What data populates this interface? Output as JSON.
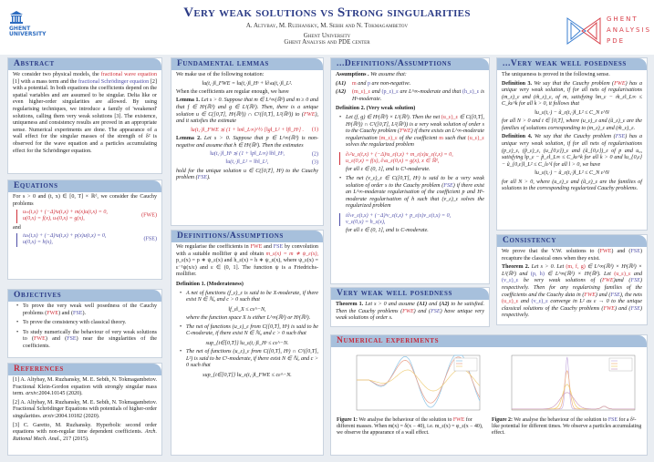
{
  "header": {
    "title": "Very weak solutions vs Strong singularities",
    "authors": "A. Altybay, M. Ruzhansky, M. Sebih and N. Tokmagambetov",
    "affiliation1": "Ghent University",
    "affiliation2": "Ghent Analysis and PDE center",
    "left_logo": "GHENT UNIVERSITY",
    "right_logo": "GHENT ANALYSIS PDE"
  },
  "colors": {
    "header_bar": "#a7c0dc",
    "title_navy": "#2b3b86",
    "fwe_red": "#d0303a",
    "fse_blue": "#4f4fa8"
  },
  "sections": [
    {
      "id": "s-abstract",
      "title": "Abstract",
      "blocks": [
        {
          "t": "p",
          "s": [
            [
              "We consider two physical models, the "
            ],
            [
              "fractional wave equation",
              "r"
            ],
            [
              " [1] with a mass term and the "
            ],
            [
              "fractional Schrödinger equation",
              "b"
            ],
            [
              " [2] with a potential. In both equations the coefficients depend on the spatial variables and are assumed to be singular. Delta like or even higher-order singularities are allowed. By using regularising techniques, we introduce a family of 'weakened' solutions, calling them very weak solutions [3]. The existence, uniqueness and consistency results are proved in an appropriate sense. Numerical experiments are done. The appearance of a wall effect for the singular masses of the strength of δ² is observed for the wave equation and a particles accumulating effect for the Schrödinger equation."
            ]
          ]
        }
      ]
    },
    {
      "id": "s-equations",
      "title": "Equations",
      "blocks": [
        {
          "t": "p",
          "s": [
            [
              "For s > 0 and (t, x) ∈ [0, T] × ℝᵈ, we consider the Cauchy problems"
            ]
          ]
        },
        {
          "t": "eq",
          "left": true,
          "c": "r",
          "lines": [
            "uₜₜ(t,x) + (−Δ)ˢu(t,x) + m(x)u(t,x) = 0,",
            "u(0,x) = f(x),  uₜ(0,x) = g(x),"
          ],
          "tag": "(FWE)"
        },
        {
          "t": "p",
          "s": [
            [
              "and"
            ]
          ]
        },
        {
          "t": "eq",
          "left": true,
          "c": "b",
          "lines": [
            "iuₜ(t,x) + (−Δ)ˢu(t,x) + p(x)u(t,x) = 0,",
            "u(0,x) = h(x),"
          ],
          "tag": "(FSE)"
        }
      ]
    },
    {
      "id": "s-objectives",
      "title": "Objectives",
      "blocks": [
        {
          "t": "li",
          "s": [
            [
              "To prove the very weak well posedness of the Cauchy problems ("
            ],
            [
              "FWE",
              "r"
            ],
            [
              ") and ("
            ],
            [
              "FSE",
              "b"
            ],
            [
              ")."
            ]
          ]
        },
        {
          "t": "li",
          "s": [
            [
              "To prove the consistency with classical theory."
            ]
          ]
        },
        {
          "t": "li",
          "s": [
            [
              "To study numerically the behaviour of very weak solutions to ("
            ],
            [
              "FWE",
              "r"
            ],
            [
              ") and ("
            ],
            [
              "FSE",
              "b"
            ],
            [
              ") near the singularities of the coefficients."
            ]
          ]
        }
      ]
    },
    {
      "id": "s-references",
      "title": "References",
      "red": true,
      "blocks": [
        {
          "t": "p",
          "s": [
            [
              "[1] A. Altybay, M. Ruzhansky, M. E. Sebih, N. Tokmagambetov. Fractional Klein-Gordon equation with strongly singular mass term. "
            ],
            [
              "arxiv",
              "i"
            ],
            [
              ":2004.10145 (2020)."
            ]
          ]
        },
        {
          "t": "p",
          "s": [
            [
              "[2] A. Altybay, M. Ruzhansky, M. E. Sebih, N. Tokmagambetov. Fractional Schrödinger Equations with potentials of higher-order singularities. "
            ],
            [
              "arxiv",
              "i"
            ],
            [
              ":2004.10182 (2020)."
            ]
          ]
        },
        {
          "t": "p",
          "s": [
            [
              "[3] C. Garetto, M. Ruzhansky. Hyperbolic second order equations with non-regular time dependent coefficients. "
            ],
            [
              "Arch. Rational Mech. Anal.",
              "i"
            ],
            [
              ", 217 (2015)."
            ]
          ]
        }
      ]
    },
    {
      "id": "s-lemmas",
      "title": "Fundamental lemmas",
      "blocks": [
        {
          "t": "p",
          "s": [
            [
              "We make use of the following notation:"
            ]
          ]
        },
        {
          "t": "eq",
          "lines": [
            "‖u(t,·)‖_FWE = ‖u(t,·)‖_Hˢ + ‖∂ₜu(t,·)‖_L²."
          ]
        },
        {
          "t": "p",
          "s": [
            [
              "When the coefficients are regular enough, we have"
            ]
          ]
        },
        {
          "t": "p",
          "s": [
            [
              "Lemma 1.",
              "B"
            ],
            [
              " Let s > 0. Suppose that m ∈ L^∞(ℝᵈ) and m ≥ 0 and that f ∈ Hˢ(ℝᵈ) and g ∈ L²(ℝᵈ). Then, there is a unique solution u ∈ C([0,T], Hˢ(ℝᵈ)) ∩ C¹([0,T], L²(ℝᵈ)) to (",
              "i"
            ],
            [
              "FWE",
              "ri"
            ],
            [
              "), and it satisfies the estimate",
              "i"
            ]
          ]
        },
        {
          "t": "eq",
          "c": "r",
          "lines": [
            "‖u(t,·)‖_FWE ≲ (1 + ‖m‖_L∞)^½ [‖g‖_L² + ‖f‖_Hˢ] ."
          ],
          "tag": "(1)"
        },
        {
          "t": "p",
          "s": [
            [
              "Lemma 2.",
              "B"
            ],
            [
              " Let s > 0. Suppose that p ∈ L^∞(ℝᵈ) is non-negative and assume that h ∈ Hˢ(ℝᵈ). Then the estimates",
              "i"
            ]
          ]
        },
        {
          "t": "eq",
          "c": "b",
          "lines": [
            "‖u(t,·)‖_Hˢ ≲ (1 + ‖p‖_L∞) ‖h‖_Hˢ,"
          ],
          "tag": "(2)"
        },
        {
          "t": "eq",
          "c": "b",
          "lines": [
            "‖u(t,·)‖_L² = ‖h‖_L²,"
          ],
          "tag": "(3)"
        },
        {
          "t": "p",
          "s": [
            [
              "hold for the unique solution u ∈ C([0,T], Hˢ) to the Cauchy problem (",
              "i"
            ],
            [
              "FSE",
              "bi"
            ],
            [
              ").",
              "i"
            ]
          ]
        }
      ]
    },
    {
      "id": "s-defs",
      "title": "Definitions/Assumptions",
      "blocks": [
        {
          "t": "p",
          "s": [
            [
              "We regularise the coefficients in "
            ],
            [
              "FWE",
              "r"
            ],
            [
              " and "
            ],
            [
              "FSE",
              "b"
            ],
            [
              " by convolution with a suitable mollifier ψ and obtain "
            ],
            [
              "m_ε(x) = m ∗ ψ_ε(x),",
              "ri"
            ],
            [
              "  p_ε(x) = p ∗ ψ_ε(x) and h_ε(x) = h ∗ ψ_ε(x), where ψ_ε(x) = ε⁻¹ψ(x/ε) and ε ∈ (0, 1]. The function ψ is a Friedrichs-mollifier."
            ]
          ]
        },
        {
          "t": "hd",
          "s": [
            [
              "Definition 1. (Moderateness)"
            ]
          ]
        },
        {
          "t": "li",
          "s": [
            [
              "A net of functions (f_ε)_ε is said to be X-moderate, if there exist N ∈ ℕ₀ and c > 0 such that",
              "i"
            ]
          ]
        },
        {
          "t": "eq",
          "lines": [
            "‖f_ε‖_X ≤ cε^−N,"
          ]
        },
        {
          "t": "ind",
          "s": [
            [
              "where the function space X is either L^∞(ℝᵈ) or Hˢ(ℝᵈ).",
              "i"
            ]
          ]
        },
        {
          "t": "li",
          "s": [
            [
              "The net of functions (u_ε)_ε from C([0,T], Hˢ) is said to be C-moderate, if there exist N ∈ ℕ₀ and c > 0 such that",
              "i"
            ]
          ]
        },
        {
          "t": "eq",
          "lines": [
            "sup_{t∈[0,T]} ‖u_ε(t,·)‖_Hˢ ≤ cε^−N."
          ]
        },
        {
          "t": "li",
          "s": [
            [
              "The net of functions (u_ε)_ε from C([0,T], Hˢ) ∩ C¹([0,T], L²) is said to be C¹-moderate, if there exist N ∈ ℕ₀ and c > 0 such that",
              "i"
            ]
          ]
        },
        {
          "t": "eq",
          "lines": [
            "sup_{t∈[0,T]} ‖u_ε(t,·)‖_FWE ≤ cε^−N."
          ]
        }
      ]
    },
    {
      "id": "s-defs2",
      "title": "...Definitions/Assumptions",
      "blocks": [
        {
          "t": "p",
          "s": [
            [
              "Assumptions .",
              "B"
            ],
            [
              " We assume that:",
              "i"
            ]
          ]
        },
        {
          "t": "ai",
          "k": "(A1)",
          "s": [
            [
              "m",
              "r"
            ],
            [
              " and ",
              "i"
            ],
            [
              "p",
              "b"
            ],
            [
              " are non-negative.",
              "i"
            ]
          ]
        },
        {
          "t": "ai",
          "k": "(A2)",
          "s": [
            [
              "(m_ε)_ε",
              "r"
            ],
            [
              " and ",
              "i"
            ],
            [
              "(p_ε)_ε",
              "b"
            ],
            [
              " are L^∞-moderate and that ",
              "i"
            ],
            [
              "(h_ε)_ε",
              "b"
            ],
            [
              " is Hˢ-moderate.",
              "i"
            ]
          ]
        },
        {
          "t": "hd",
          "s": [
            [
              "Definition 2. (Very weak solution)"
            ]
          ]
        },
        {
          "t": "li",
          "s": [
            [
              "Let (f, g) ∈ Hˢ(ℝᵈ) × L²(ℝᵈ). Then the net ",
              "i"
            ],
            [
              "(u_ε)_ε",
              "r"
            ],
            [
              " ∈ C([0,T], Hˢ(ℝᵈ)) ∩ C¹([0,T], L²(ℝᵈ)) is a very weak solution of order s to the Cauchy problem (",
              "i"
            ],
            [
              "FWE",
              "ri"
            ],
            [
              ") if there exists an L^∞-moderate regularisation ",
              "i"
            ],
            [
              "(m_ε)_ε",
              "r"
            ],
            [
              " of the coefficient ",
              "i"
            ],
            [
              "m",
              "r"
            ],
            [
              " such that ",
              "i"
            ],
            [
              "(u_ε)_ε",
              "r"
            ],
            [
              " solves the regularized problem",
              "i"
            ]
          ]
        },
        {
          "t": "eq",
          "left": true,
          "c": "r",
          "lines": [
            "∂ₜ²u_ε(t,x) + (−Δ)ˢu_ε(t,x) + m_ε(x)u_ε(t,x) = 0,",
            "u_ε(0,x) = f(x), ∂ₜu_ε(0,x) = g(x),  x ∈ ℝᵈ,"
          ]
        },
        {
          "t": "ind",
          "s": [
            [
              "for all ε ∈ (0, 1], and is C¹-moderate.",
              "i"
            ]
          ]
        },
        {
          "t": "li",
          "s": [
            [
              "The net (v_ε)_ε ∈ C([0,T], Hˢ) is said to be a very weak solution of order s to the Cauchy problem (",
              "i"
            ],
            [
              "FSE",
              "bi"
            ],
            [
              ") if there exist an L^∞-moderate regularisation of the coefficient p and Hˢ-moderate regularisation of h such that (v_ε)_ε solves the regularized problem",
              "i"
            ]
          ]
        },
        {
          "t": "eq",
          "left": true,
          "c": "b",
          "lines": [
            "i∂ₜv_ε(t,x) + (−Δ)ˢv_ε(t,x) + p_ε(x)v_ε(t,x) = 0,",
            "v_ε(0,x) = h_ε(x),"
          ]
        },
        {
          "t": "ind",
          "s": [
            [
              "for all ε ∈ (0, 1], and is C-moderate.",
              "i"
            ]
          ]
        }
      ]
    },
    {
      "id": "s-vwwp",
      "title": "Very weak well posedness",
      "blocks": [
        {
          "t": "p",
          "s": [
            [
              "Theorem 1.",
              "B"
            ],
            [
              " Let s > 0 and assume ",
              "i"
            ],
            [
              "(A1)",
              "Bi"
            ],
            [
              " and ",
              "i"
            ],
            [
              "(A2)",
              "Bi"
            ],
            [
              " to be satisfied. Then the Cauchy problems (",
              "i"
            ],
            [
              "FWE",
              "ri"
            ],
            [
              ") and (",
              "i"
            ],
            [
              "FSE",
              "bi"
            ],
            [
              ") have unique very weak solutions of order s.",
              "i"
            ]
          ]
        }
      ]
    },
    {
      "id": "s-vwwp2",
      "title": "...Very weak well posedness",
      "blocks": [
        {
          "t": "p",
          "s": [
            [
              "The uniqueness is proved in the following sense."
            ]
          ]
        },
        {
          "t": "p",
          "s": [
            [
              "Definition 3.",
              "B"
            ],
            [
              " We say that the Cauchy problem (",
              "i"
            ],
            [
              "FWE",
              "ri"
            ],
            [
              ") has a unique very weak solution, if for all nets of regularisations (m_ε)_ε and (m̃_ε)_ε, of m, satisfying ‖m_ε − m̃_ε‖_L∞ ≤ C_kε^k for all k > 0, it follows that",
              "i"
            ]
          ]
        },
        {
          "t": "eq",
          "lines": [
            "‖u_ε(t,·) − ũ_ε(t,·)‖_L² ≤ C_N ε^N"
          ]
        },
        {
          "t": "p",
          "s": [
            [
              "for all N > 0 and t ∈ [0,T], where (u_ε)_ε and (ũ_ε)_ε are the families of solutions corresponding to (m_ε)_ε and (m̃_ε)_ε.",
              "i"
            ]
          ]
        },
        {
          "t": "p",
          "s": [
            [
              "Definition 4.",
              "B"
            ],
            [
              " We say that the Cauchy problem (",
              "i"
            ],
            [
              "FSE",
              "bi"
            ],
            [
              ") has a unique very weak solution, if for all nets of regularisations (p_ε)_ε, (p̃_ε)_ε, (u_{0,ε})_ε and (ũ_{0,ε})_ε of p and u₀, satisfying ‖p_ε − p̃_ε‖_L∞ ≤ C_kε^k for all k > 0 and ‖u_{0,ε} − ũ_{0,ε}‖_L² ≤ C_lε^l for all l > 0, we have",
              "i"
            ]
          ]
        },
        {
          "t": "eq",
          "lines": [
            "‖u_ε(t,·) − ũ_ε(t,·)‖_L² ≤ C_N ε^N"
          ]
        },
        {
          "t": "p",
          "s": [
            [
              "for all N > 0, where (u_ε)_ε and (ũ_ε)_ε are the families of solutions to the corresponding regularized Cauchy problems.",
              "i"
            ]
          ]
        }
      ]
    },
    {
      "id": "s-consistency",
      "title": "Consistency",
      "blocks": [
        {
          "t": "p",
          "s": [
            [
              "We prove that the V.W. solutions to ("
            ],
            [
              "FWE",
              "r"
            ],
            [
              ") and ("
            ],
            [
              "FSE",
              "b"
            ],
            [
              ") recapture the classical ones when they exist."
            ]
          ]
        },
        {
          "t": "p",
          "s": [
            [
              "Theorem 2.",
              "B"
            ],
            [
              " Let s > 0. Let ",
              "i"
            ],
            [
              "(m, f, g)",
              "r"
            ],
            [
              " ∈ L^∞(ℝᵈ) × Hˢ(ℝᵈ) × L²(ℝᵈ) and ",
              "i"
            ],
            [
              "(p, h)",
              "b"
            ],
            [
              " ∈ L^∞(ℝᵈ) × Hˢ(ℝᵈ). Let ",
              "i"
            ],
            [
              "(u_ε)_ε",
              "r"
            ],
            [
              " and ",
              "i"
            ],
            [
              "(v_ε)_ε",
              "b"
            ],
            [
              " be very weak solutions of (",
              "i"
            ],
            [
              "FWE",
              "ri"
            ],
            [
              ")and (",
              "i"
            ],
            [
              "FSE",
              "bi"
            ],
            [
              ") respectively. Then for any regularising families of the coefficients and the Cauchy data in (",
              "i"
            ],
            [
              "FWE",
              "ri"
            ],
            [
              ") and (",
              "i"
            ],
            [
              "FSE",
              "bi"
            ],
            [
              "), the nets ",
              "i"
            ],
            [
              "(u_ε)_ε",
              "r"
            ],
            [
              " and ",
              "i"
            ],
            [
              "(v_ε)_ε",
              "b"
            ],
            [
              " converge in L² as ε → 0 to the unique classical solutions of the Cauchy problems (",
              "i"
            ],
            [
              "FWE",
              "ri"
            ],
            [
              ") and (",
              "i"
            ],
            [
              "FSE",
              "bi"
            ],
            [
              ") respectively.",
              "i"
            ]
          ]
        }
      ]
    }
  ],
  "numerical": {
    "title": "Numerical experiments",
    "fig1": {
      "caption": [
        [
          "Figure 1:",
          "B"
        ],
        [
          " We analyse the behaviour of the solution to "
        ],
        [
          "FWE",
          "r"
        ],
        [
          " for different masses. When m(x) = δ(x − 40), i.e. m_ε(x) = φ_ε(x − 40), we observe the appearance of a wall effect."
        ]
      ]
    },
    "fig2": {
      "caption": [
        [
          "Figure 2:",
          "B"
        ],
        [
          " We analyse the behaviour of the solution to "
        ],
        [
          "FSE",
          "b"
        ],
        [
          " for a δ²-like potential for different times. We observe a particles accumulating effect."
        ]
      ]
    }
  }
}
